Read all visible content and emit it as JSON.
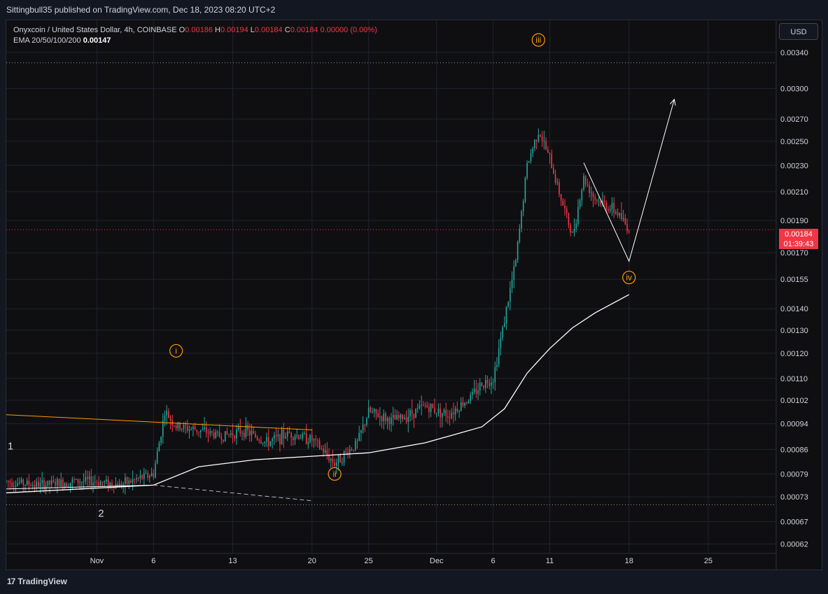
{
  "header": {
    "published_line": "Sittingbull35 published on TradingView.com, Dec 18, 2023 08:20 UTC+2"
  },
  "legend": {
    "symbol": "Onyxcoin / United States Dollar, 4h, COINBASE",
    "o_label": "O",
    "o_value": "0.00186",
    "h_label": "H",
    "h_value": "0.00194",
    "l_label": "L",
    "l_value": "0.00184",
    "c_label": "C",
    "c_value": "0.00184 0.00000 (0.00%)",
    "ema_label": "EMA 20/50/100/200",
    "ema_value": "0.00147"
  },
  "currency_button": "USD",
  "last_price": {
    "price": "0.00184",
    "countdown": "01:39:43"
  },
  "footer": {
    "brand": "TradingView",
    "brand_mark": "17"
  },
  "colors": {
    "up": "#26a69a",
    "down": "#f23645",
    "ema": "#ffffff",
    "wave_label": "#ff9800",
    "trendline": "#ff9800",
    "projection": "#ffffff",
    "grid": "#1f232d"
  },
  "chart_data": {
    "type": "candlestick",
    "title": "Onyxcoin / United States Dollar, 4h, COINBASE",
    "y_scale": "log",
    "ylim": [
      0.0006,
      0.0038
    ],
    "y_ticks": [
      "0.00340",
      "0.00300",
      "0.00270",
      "0.00250",
      "0.00230",
      "0.00210",
      "0.00190",
      "0.00170",
      "0.00155",
      "0.00140",
      "0.00130",
      "0.00120",
      "0.00110",
      "0.00102",
      "0.00094",
      "0.00086",
      "0.00079",
      "0.00073",
      "0.00067",
      "0.00062"
    ],
    "x_ticks": [
      "Nov",
      "6",
      "13",
      "20",
      "25",
      "Dec",
      "6",
      "11",
      "18",
      "25"
    ],
    "x_tick_dates": [
      "2023-11-01",
      "2023-11-06",
      "2023-11-13",
      "2023-11-20",
      "2023-11-25",
      "2023-12-01",
      "2023-12-06",
      "2023-12-11",
      "2023-12-18",
      "2023-12-25"
    ],
    "x_range": [
      "2023-10-24",
      "2023-12-31"
    ],
    "series": [
      {
        "name": "",
        "kind": "price_path",
        "points": [
          [
            "2023-10-24",
            0.00077
          ],
          [
            "2023-10-27",
            0.00076
          ],
          [
            "2023-10-30",
            0.00077
          ],
          [
            "2023-11-01",
            0.00077
          ],
          [
            "2023-11-03",
            0.00076
          ],
          [
            "2023-11-05",
            0.00078
          ],
          [
            "2023-11-06",
            0.00079
          ],
          [
            "2023-11-07",
            0.00098
          ],
          [
            "2023-11-08",
            0.00093
          ],
          [
            "2023-11-10",
            0.00092
          ],
          [
            "2023-11-12",
            0.0009
          ],
          [
            "2023-11-14",
            0.00092
          ],
          [
            "2023-11-16",
            0.00088
          ],
          [
            "2023-11-18",
            0.00091
          ],
          [
            "2023-11-20",
            0.00089
          ],
          [
            "2023-11-22",
            0.00082
          ],
          [
            "2023-11-24",
            0.00088
          ],
          [
            "2023-11-25",
            0.00098
          ],
          [
            "2023-11-27",
            0.00095
          ],
          [
            "2023-11-28",
            0.00096
          ],
          [
            "2023-11-30",
            0.001
          ],
          [
            "2023-12-02",
            0.00097
          ],
          [
            "2023-12-04",
            0.00103
          ],
          [
            "2023-12-05",
            0.00108
          ],
          [
            "2023-12-06",
            0.0011
          ],
          [
            "2023-12-07",
            0.00135
          ],
          [
            "2023-12-08",
            0.00165
          ],
          [
            "2023-12-09",
            0.0023
          ],
          [
            "2023-12-10",
            0.0026
          ],
          [
            "2023-12-11",
            0.00235
          ],
          [
            "2023-12-12",
            0.00205
          ],
          [
            "2023-12-13",
            0.0018
          ],
          [
            "2023-12-14",
            0.0022
          ],
          [
            "2023-12-15",
            0.00205
          ],
          [
            "2023-12-16",
            0.002
          ],
          [
            "2023-12-17",
            0.00195
          ],
          [
            "2023-12-18",
            0.00184
          ]
        ]
      },
      {
        "name": "EMA 20/50/100/200",
        "kind": "ema",
        "points": [
          [
            "2023-10-24",
            0.00074
          ],
          [
            "2023-11-06",
            0.00076
          ],
          [
            "2023-11-10",
            0.00081
          ],
          [
            "2023-11-15",
            0.00083
          ],
          [
            "2023-11-20",
            0.00084
          ],
          [
            "2023-11-25",
            0.00085
          ],
          [
            "2023-11-30",
            0.00088
          ],
          [
            "2023-12-05",
            0.00093
          ],
          [
            "2023-12-07",
            0.00099
          ],
          [
            "2023-12-09",
            0.00112
          ],
          [
            "2023-12-11",
            0.00122
          ],
          [
            "2023-12-13",
            0.00131
          ],
          [
            "2023-12-15",
            0.00138
          ],
          [
            "2023-12-18",
            0.00147
          ]
        ]
      }
    ],
    "annotations": {
      "wave_labels": [
        {
          "text": "i",
          "date": "2023-11-08",
          "price": 0.00121
        },
        {
          "text": "ii",
          "date": "2023-11-22",
          "price": 0.00079
        },
        {
          "text": "iii",
          "date": "2023-12-10",
          "price": 0.00355
        },
        {
          "text": "iv",
          "date": "2023-12-18",
          "price": 0.00156
        }
      ],
      "plain_labels": [
        {
          "text": "1",
          "date": "2023-10-24",
          "price": 0.00087
        },
        {
          "text": "2",
          "date": "2023-11-01",
          "price": 0.00069
        }
      ],
      "trendline_upper": [
        [
          "2023-10-24",
          0.00097
        ],
        [
          "2023-11-20",
          0.00092
        ]
      ],
      "trendline_lower": [
        [
          "2023-10-24",
          0.00075
        ],
        [
          "2023-11-06",
          0.00076
        ]
      ],
      "trendline_lower_dashed": [
        [
          "2023-11-06",
          0.00076
        ],
        [
          "2023-11-20",
          0.00072
        ]
      ],
      "horizontal_levels": [
        0.00328,
        0.00071
      ],
      "projection_path": [
        [
          "2023-12-14",
          0.00232
        ],
        [
          "2023-12-18",
          0.00165
        ],
        [
          "2023-12-22",
          0.00289
        ]
      ]
    }
  }
}
